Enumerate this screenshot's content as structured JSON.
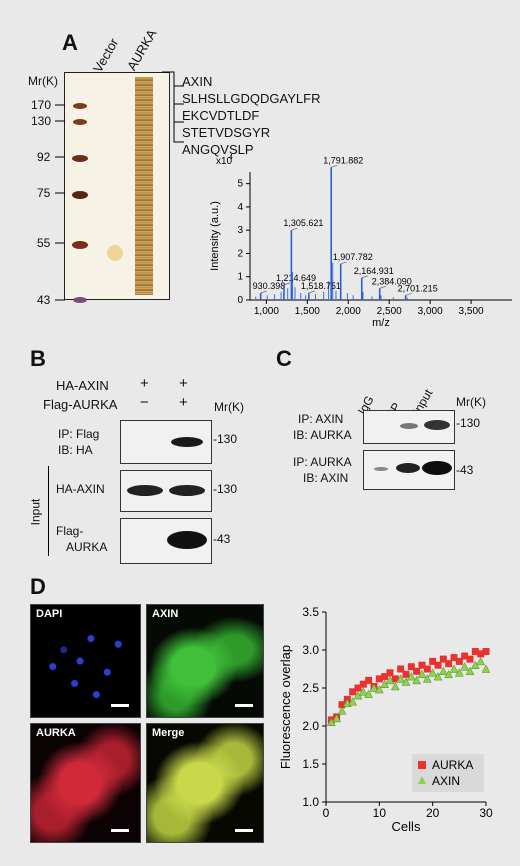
{
  "panel_a": {
    "letter": "A",
    "lane_labels": [
      "Vector",
      "AURKA"
    ],
    "mr_title": "Mr(K)",
    "mr_markers": [
      "170",
      "130",
      "92",
      "75",
      "55",
      "43"
    ],
    "protein": "AXIN",
    "peptides": [
      "SLHSLLGDQDGAYLFR",
      "EKCVDTLDF",
      "STETVDSGYR",
      "ANGQVSLP"
    ]
  },
  "chart_data": {
    "type": "bar",
    "title": "",
    "xlabel": "m/z",
    "ylabel": "Intensity (a.u.)",
    "y_multiplier": "x10",
    "y_multiplier_exp": "4",
    "xlim": [
      800,
      4000
    ],
    "ylim": [
      0,
      5.5
    ],
    "x_ticks": [
      "1,000",
      "1,500",
      "2,000",
      "2,500",
      "3,000",
      "3,500"
    ],
    "y_ticks": [
      "0",
      "1",
      "2",
      "3",
      "4",
      "5"
    ],
    "peaks": [
      {
        "mz": 930.398,
        "intensity": 0.3,
        "label": "930.398"
      },
      {
        "mz": 1214.649,
        "intensity": 0.65,
        "label": "1,214.649"
      },
      {
        "mz": 1305.621,
        "intensity": 3.0,
        "label": "1,305.621"
      },
      {
        "mz": 1518.751,
        "intensity": 0.3,
        "label": "1,518.751"
      },
      {
        "mz": 1791.882,
        "intensity": 5.7,
        "label": "1,791.882"
      },
      {
        "mz": 1907.782,
        "intensity": 1.55,
        "label": "1,907.782"
      },
      {
        "mz": 2164.931,
        "intensity": 0.95,
        "label": "2,164.931"
      },
      {
        "mz": 2384.09,
        "intensity": 0.5,
        "label": "2,384.090"
      },
      {
        "mz": 2701.215,
        "intensity": 0.2,
        "label": "2,701.215"
      }
    ],
    "minor_peaks": [
      {
        "mz": 870,
        "intensity": 0.15
      },
      {
        "mz": 1010,
        "intensity": 0.2
      },
      {
        "mz": 1100,
        "intensity": 0.25
      },
      {
        "mz": 1180,
        "intensity": 0.35
      },
      {
        "mz": 1260,
        "intensity": 0.5
      },
      {
        "mz": 1320,
        "intensity": 1.2
      },
      {
        "mz": 1350,
        "intensity": 0.55
      },
      {
        "mz": 1420,
        "intensity": 0.3
      },
      {
        "mz": 1480,
        "intensity": 0.2
      },
      {
        "mz": 1600,
        "intensity": 0.25
      },
      {
        "mz": 1700,
        "intensity": 0.35
      },
      {
        "mz": 1760,
        "intensity": 0.8
      },
      {
        "mz": 1810,
        "intensity": 1.6
      },
      {
        "mz": 1850,
        "intensity": 0.4
      },
      {
        "mz": 1990,
        "intensity": 0.3
      },
      {
        "mz": 2060,
        "intensity": 0.2
      },
      {
        "mz": 2180,
        "intensity": 0.35
      },
      {
        "mz": 2290,
        "intensity": 0.15
      },
      {
        "mz": 2400,
        "intensity": 0.2
      },
      {
        "mz": 2550,
        "intensity": 0.12
      },
      {
        "mz": 2720,
        "intensity": 0.1
      }
    ]
  },
  "panel_b": {
    "letter": "B",
    "row_labels": [
      "HA-AXIN",
      "Flag-AURKA"
    ],
    "lane1": [
      "+",
      "−"
    ],
    "lane2": [
      "+",
      "+"
    ],
    "mr_title": "Mr(K)",
    "blot1_labels": [
      "IP: Flag",
      "IB: HA"
    ],
    "blot1_mr": "-130",
    "input_label": "Input",
    "blot2_label": "HA-AXIN",
    "blot2_mr": "-130",
    "blot3_label_1": "Flag-",
    "blot3_label_2": "AURKA",
    "blot3_mr": "-43"
  },
  "panel_c": {
    "letter": "C",
    "lane_labels": [
      "IgG",
      "IP",
      "Input"
    ],
    "mr_title": "Mr(K)",
    "blot1_labels": [
      "IP: AXIN",
      "IB: AURKA"
    ],
    "blot1_mr": "-130",
    "blot2_labels": [
      "IP: AURKA",
      "IB: AXIN"
    ],
    "blot2_mr": "-43"
  },
  "panel_d": {
    "letter": "D",
    "images": [
      "DAPI",
      "AXIN",
      "AURKA",
      "Merge"
    ],
    "colors": {
      "dapi": "#2b3fd0",
      "axin": "#3fbf3a",
      "aurka": "#d02a3a",
      "merge": "#c8d84a"
    }
  },
  "scatter_data": {
    "type": "scatter",
    "xlabel": "Cells",
    "ylabel": "Fluorescence overlap",
    "xlim": [
      0,
      30
    ],
    "ylim": [
      1.0,
      3.5
    ],
    "x_ticks": [
      "0",
      "10",
      "20",
      "30"
    ],
    "y_ticks": [
      "1.0",
      "1.5",
      "2.0",
      "2.5",
      "3.0",
      "3.5"
    ],
    "series": [
      {
        "name": "AURKA",
        "marker": "square",
        "color": "#e8322f",
        "x": [
          1,
          2,
          3,
          4,
          5,
          6,
          7,
          8,
          9,
          10,
          11,
          12,
          13,
          14,
          15,
          16,
          17,
          18,
          19,
          20,
          21,
          22,
          23,
          24,
          25,
          26,
          27,
          28,
          29,
          30
        ],
        "y": [
          2.08,
          2.12,
          2.28,
          2.35,
          2.45,
          2.5,
          2.55,
          2.6,
          2.52,
          2.62,
          2.65,
          2.7,
          2.62,
          2.75,
          2.68,
          2.78,
          2.72,
          2.8,
          2.75,
          2.85,
          2.8,
          2.88,
          2.82,
          2.9,
          2.85,
          2.92,
          2.88,
          2.98,
          2.95,
          2.98
        ]
      },
      {
        "name": "AXIN",
        "marker": "triangle",
        "color": "#8fd14f",
        "x": [
          1,
          2,
          3,
          4,
          5,
          6,
          7,
          8,
          9,
          10,
          11,
          12,
          13,
          14,
          15,
          16,
          17,
          18,
          19,
          20,
          21,
          22,
          23,
          24,
          25,
          26,
          27,
          28,
          29,
          30
        ],
        "y": [
          2.05,
          2.1,
          2.2,
          2.3,
          2.32,
          2.4,
          2.45,
          2.42,
          2.5,
          2.48,
          2.55,
          2.6,
          2.52,
          2.62,
          2.58,
          2.65,
          2.6,
          2.68,
          2.62,
          2.7,
          2.65,
          2.72,
          2.68,
          2.75,
          2.7,
          2.78,
          2.72,
          2.8,
          2.85,
          2.75
        ]
      }
    ]
  }
}
